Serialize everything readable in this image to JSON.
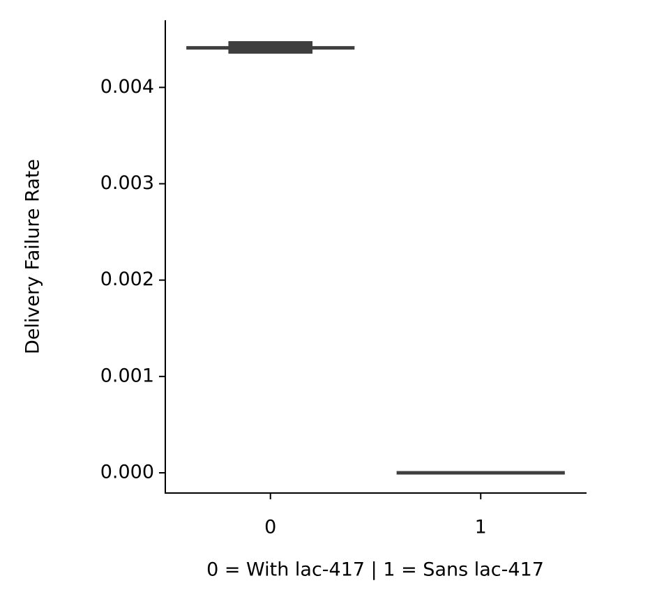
{
  "chart_data": {
    "type": "box",
    "x_label": "0 = With lac-417 | 1 = Sans lac-417",
    "y_label": "Delivery Failure Rate",
    "categories": [
      "0",
      "1"
    ],
    "series": [
      {
        "name": "q1",
        "values": [
          0.00435,
          0
        ]
      },
      {
        "name": "median",
        "values": [
          0.00441,
          0
        ]
      },
      {
        "name": "q3",
        "values": [
          0.00448,
          0
        ]
      }
    ],
    "color": "#3f3f3f",
    "ylim": [
      -0.00021,
      0.00469
    ],
    "yticks": [
      {
        "value": 0,
        "label": "0.000"
      },
      0.001,
      0.002,
      0.003,
      0.004
    ]
  }
}
